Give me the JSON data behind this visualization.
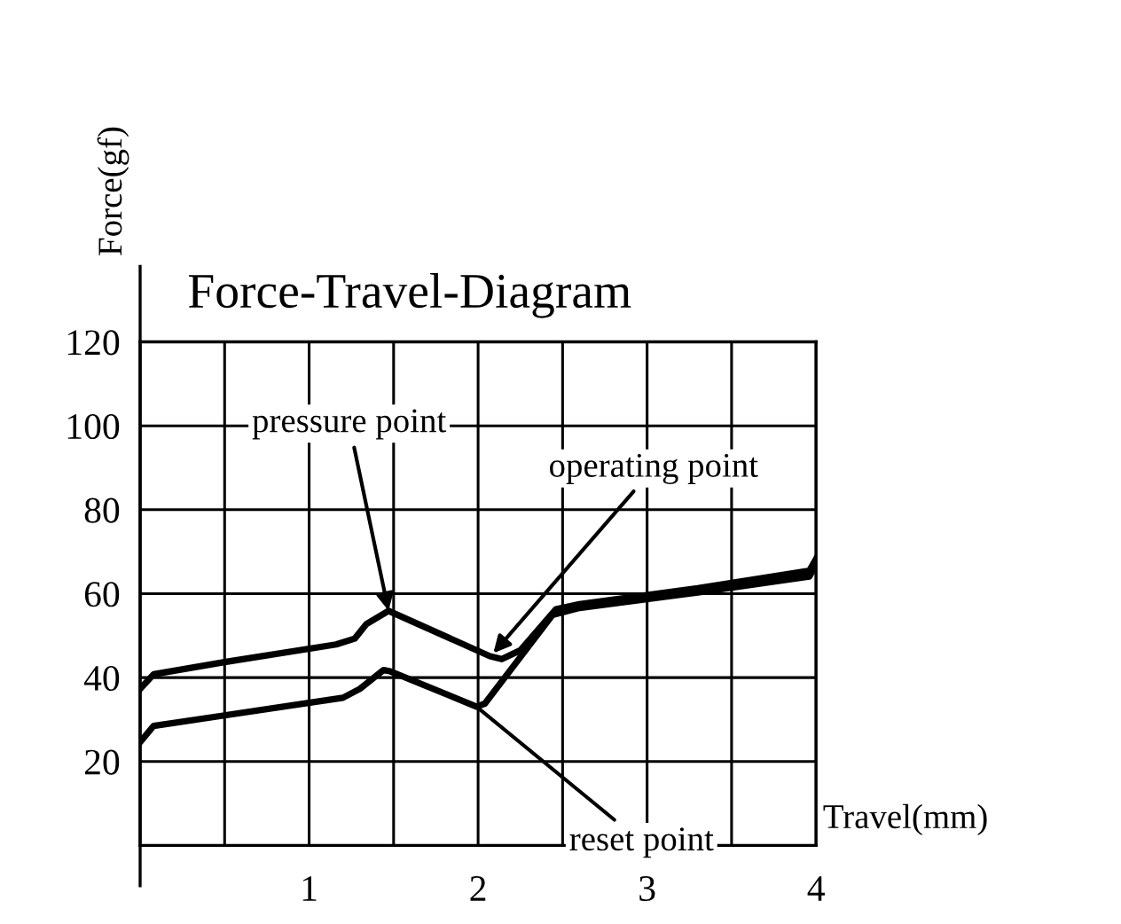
{
  "chart_data": {
    "type": "line",
    "title": "Force-Travel-Diagram",
    "xlabel": "Travel(mm)",
    "ylabel": "Force(gf)",
    "series": [
      {
        "color": "#000000",
        "x": [
          0,
          0.08,
          0.5,
          1.16,
          1.27,
          1.34,
          1.47,
          2.07,
          2.14,
          2.25,
          2.46,
          2.6,
          3.3,
          3.96,
          4
        ],
        "values": [
          37.3,
          40.8,
          43.7,
          47.9,
          49.3,
          52.8,
          55.9,
          45.1,
          44.4,
          46.5,
          56.3,
          57.5,
          61.3,
          65.5,
          68.3
        ]
      },
      {
        "color": "#000000",
        "x": [
          0,
          0.08,
          0.5,
          1.2,
          1.3,
          1.44,
          1.48,
          1.99,
          2.04,
          2.44,
          2.6,
          3.3,
          3.96,
          4
        ],
        "values": [
          24.6,
          28.5,
          31,
          35.2,
          37.3,
          41.8,
          41.5,
          33.1,
          33.8,
          54.9,
          56.6,
          60.3,
          64.1,
          66.9
        ]
      }
    ],
    "xlim": [
      0,
      4
    ],
    "ylim": [
      0,
      120
    ],
    "xticks": [
      {
        "value": 0.5,
        "label": null
      },
      1,
      {
        "value": 1.5,
        "label": null
      },
      2,
      {
        "value": 2.5,
        "label": null
      },
      3,
      {
        "value": 3.5,
        "label": null
      },
      4
    ],
    "yticks": [
      20,
      40,
      60,
      80,
      100,
      120
    ],
    "grid": true,
    "marker": "none",
    "line_style": "solid",
    "annotations": [
      {
        "text": "pressure point",
        "x": 1.47,
        "y": 55.9
      },
      {
        "text": "operating point",
        "x": 2.09,
        "y": 45.8
      },
      {
        "text": "reset point",
        "x": 1.99,
        "y": 33.1
      }
    ]
  }
}
